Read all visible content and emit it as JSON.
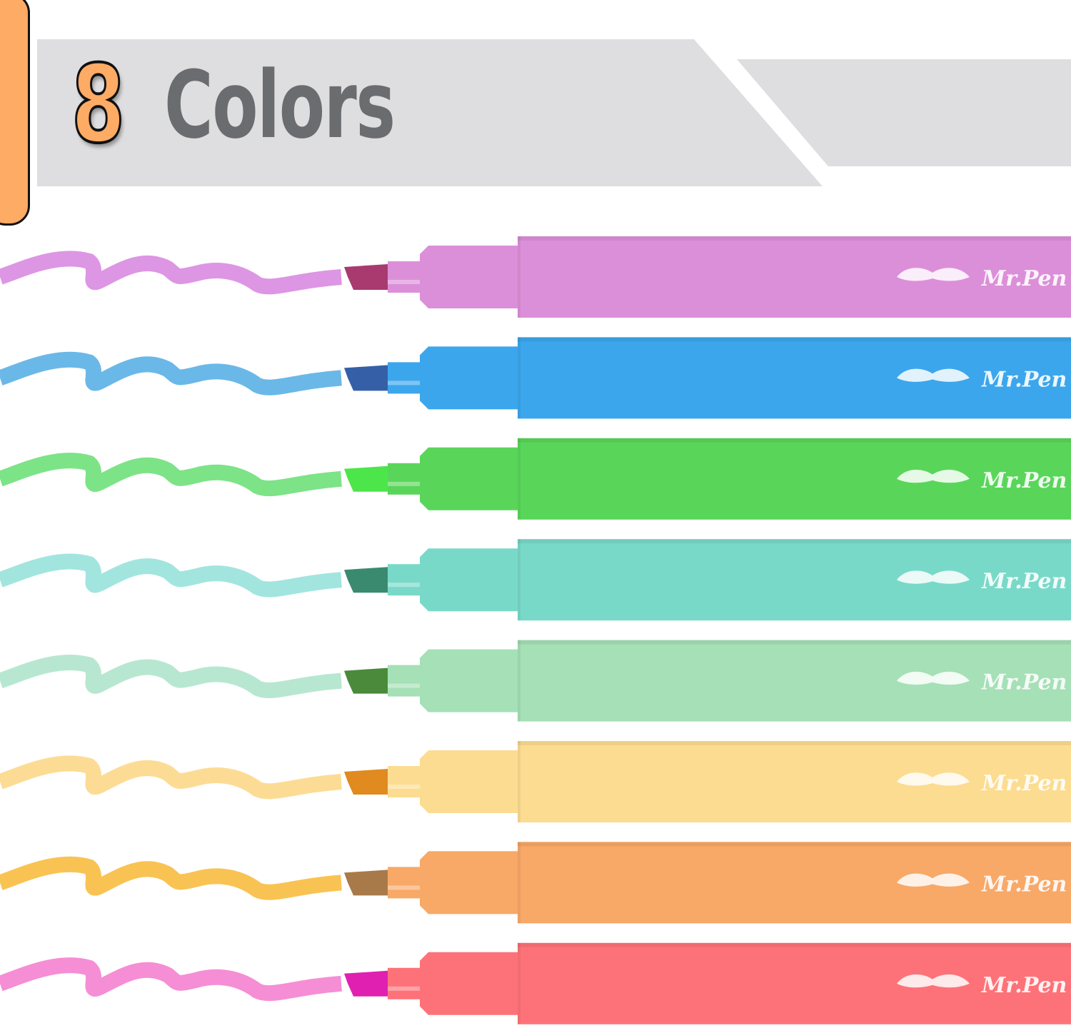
{
  "title": {
    "number": "8",
    "word": "Colors"
  },
  "brand": "Mr.Pen",
  "colors": {
    "accent": "#fdab65",
    "banner": "#dedee0",
    "title_text": "#6b6c6f"
  },
  "markers": [
    {
      "name": "violet",
      "body": "#dc8fd9",
      "tip": "#a83a70",
      "stroke": "#d98be0"
    },
    {
      "name": "blue",
      "body": "#3ba6ec",
      "tip": "#3560a8",
      "stroke": "#5ab0e6"
    },
    {
      "name": "green",
      "body": "#59d65a",
      "tip": "#4de64a",
      "stroke": "#6fe07a"
    },
    {
      "name": "teal",
      "body": "#79d9c8",
      "tip": "#3a8a70",
      "stroke": "#98e2dc"
    },
    {
      "name": "mint",
      "body": "#a5e0b6",
      "tip": "#4a8a3a",
      "stroke": "#b0e4cc"
    },
    {
      "name": "yellow",
      "body": "#fcdc90",
      "tip": "#e08a20",
      "stroke": "#fcd888"
    },
    {
      "name": "orange",
      "body": "#f8a867",
      "tip": "#a87a4a",
      "stroke": "#f8bc40"
    },
    {
      "name": "red",
      "body": "#fd7278",
      "tip": "#e020b0",
      "stroke": "#f482d0"
    }
  ]
}
